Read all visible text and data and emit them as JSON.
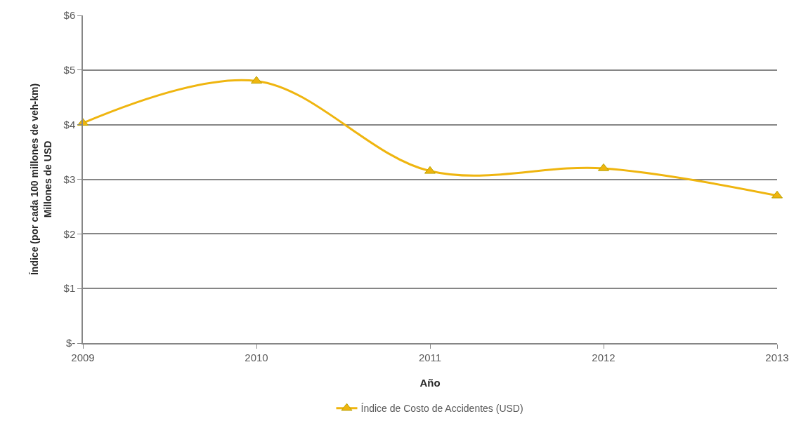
{
  "chart_data": {
    "type": "line",
    "xlabel": "Año",
    "ylabel": "Índice (por cada 100 millones de veh-km)\nMillones de USD",
    "x": [
      2009,
      2010,
      2011,
      2012,
      2013
    ],
    "xlim": [
      2009,
      2013
    ],
    "xticks": [
      2009,
      2010,
      2011,
      2012,
      2013
    ],
    "ylim": [
      0,
      6
    ],
    "yticks": [
      {
        "value": 0,
        "label": "$-"
      },
      {
        "value": 1,
        "label": "$1"
      },
      {
        "value": 2,
        "label": "$2"
      },
      {
        "value": 3,
        "label": "$3"
      },
      {
        "value": 4,
        "label": "$4"
      },
      {
        "value": 5,
        "label": "$5"
      },
      {
        "value": 6,
        "label": "$6"
      }
    ],
    "series": [
      {
        "name": "Índice de Costo de Accidentes (USD)",
        "color": "#efb50f",
        "values": [
          4.03,
          4.8,
          3.15,
          3.2,
          2.7
        ]
      }
    ],
    "grid": "y",
    "legend": "bottom",
    "marker": "triangle",
    "line_style": "solid"
  }
}
